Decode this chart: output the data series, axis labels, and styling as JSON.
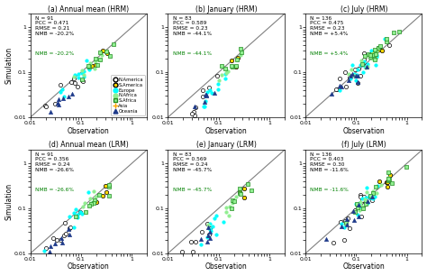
{
  "panels": [
    {
      "label": "(a) Annual mean (HRM)",
      "stats_lines": [
        "N = 91",
        "PCC = 0.471",
        "RMSE = 0.21",
        "NMB = -20.2%"
      ]
    },
    {
      "label": "(b) January (HRM)",
      "stats_lines": [
        "N = 83",
        "PCC = 0.589",
        "RMSE = 0.23",
        "NMB = -44.1%"
      ]
    },
    {
      "label": "(c) July (HRM)",
      "stats_lines": [
        "N = 136",
        "PCC = 0.475",
        "RMSE = 0.23",
        "NMB = +5.4%"
      ]
    },
    {
      "label": "(d) Annual mean (LRM)",
      "stats_lines": [
        "N = 91",
        "PCC = 0.356",
        "RMSE = 0.24",
        "NMB = -26.6%"
      ]
    },
    {
      "label": "(e) January (LRM)",
      "stats_lines": [
        "N = 83",
        "PCC = 0.569",
        "RMSE = 0.24",
        "NMB = -45.7%"
      ]
    },
    {
      "label": "(f) July (LRM)",
      "stats_lines": [
        "N = 136",
        "PCC = 0.403",
        "RMSE = 0.30",
        "NMB = -11.6%"
      ]
    }
  ],
  "regions": [
    {
      "name": "N.America",
      "facecolor": "white",
      "edgecolor": "black",
      "marker": "o",
      "size": 9,
      "lw": 0.5
    },
    {
      "name": "S.America",
      "facecolor": "#FFD700",
      "edgecolor": "black",
      "marker": "o",
      "size": 10,
      "lw": 0.5
    },
    {
      "name": "Europe",
      "facecolor": "cyan",
      "edgecolor": "cyan",
      "marker": "o",
      "size": 7,
      "lw": 0.3
    },
    {
      "name": "N.Africa",
      "facecolor": "#90EE90",
      "edgecolor": "#90EE90",
      "marker": "o",
      "size": 7,
      "lw": 0.3
    },
    {
      "name": "S.Africa",
      "facecolor": "#90EE90",
      "edgecolor": "#228B22",
      "marker": "s",
      "size": 8,
      "lw": 0.5
    },
    {
      "name": "Asia",
      "facecolor": "none",
      "edgecolor": "#FFA500",
      "marker": "+",
      "size": 10,
      "lw": 0.7
    },
    {
      "name": "Oceania",
      "facecolor": "#1E3A8A",
      "edgecolor": "#1E3A8A",
      "marker": "^",
      "size": 9,
      "lw": 0.5
    }
  ],
  "xlabel": "Observation",
  "ylabel": "Simulation",
  "xlim": [
    0.01,
    2.0
  ],
  "ylim": [
    0.01,
    2.0
  ],
  "ticks": [
    0.01,
    0.1,
    1
  ],
  "tick_labels": [
    "0.01",
    "0.1",
    "1"
  ]
}
